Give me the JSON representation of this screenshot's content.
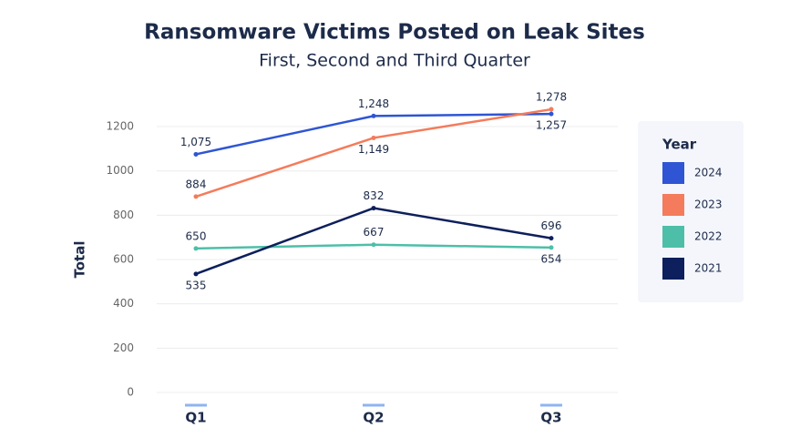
{
  "chart_data": {
    "type": "line",
    "title": "Ransomware Victims Posted on Leak Sites",
    "subtitle": "First, Second and Third Quarter",
    "y_label": "Total",
    "categories": [
      "Q1",
      "Q2",
      "Q3"
    ],
    "series": [
      {
        "name": "2024",
        "color": "#2f55d4",
        "values": [
          1075,
          1248,
          1257
        ],
        "value_labels": [
          "1,075",
          "1,248",
          "1,257"
        ]
      },
      {
        "name": "2023",
        "color": "#f47b5b",
        "values": [
          884,
          1149,
          1278
        ],
        "value_labels": [
          "884",
          "1,149",
          "1,278"
        ]
      },
      {
        "name": "2022",
        "color": "#4dbfa8",
        "values": [
          650,
          667,
          654
        ],
        "value_labels": [
          "650",
          "667",
          "654"
        ]
      },
      {
        "name": "2021",
        "color": "#0d1f5c",
        "values": [
          535,
          832,
          696
        ],
        "value_labels": [
          "535",
          "832",
          "696"
        ]
      }
    ],
    "legend_title": "Year",
    "ylim": [
      0,
      1300
    ],
    "yticks": [
      0,
      200,
      400,
      600,
      800,
      1000,
      1200
    ],
    "grid": true
  }
}
